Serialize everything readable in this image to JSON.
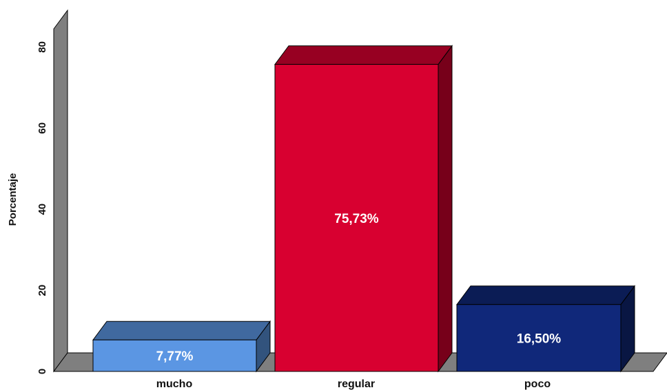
{
  "chart_data": {
    "type": "bar",
    "style": "3d",
    "title": "",
    "xlabel": "",
    "ylabel": "Porcentaje",
    "ylim": [
      0,
      80
    ],
    "yticks": [
      0,
      20,
      40,
      60,
      80
    ],
    "grid": false,
    "legend": "none",
    "categories": [
      "mucho",
      "regular",
      "poco"
    ],
    "values": [
      7.77,
      75.73,
      16.5
    ],
    "data_labels": [
      "7,77%",
      "75,73%",
      "16,50%"
    ],
    "colors": {
      "bars": [
        "#5B96E3",
        "#D80030",
        "#10287A"
      ],
      "wall": "#7F7F7F",
      "floor": "#7F7F7F"
    }
  }
}
